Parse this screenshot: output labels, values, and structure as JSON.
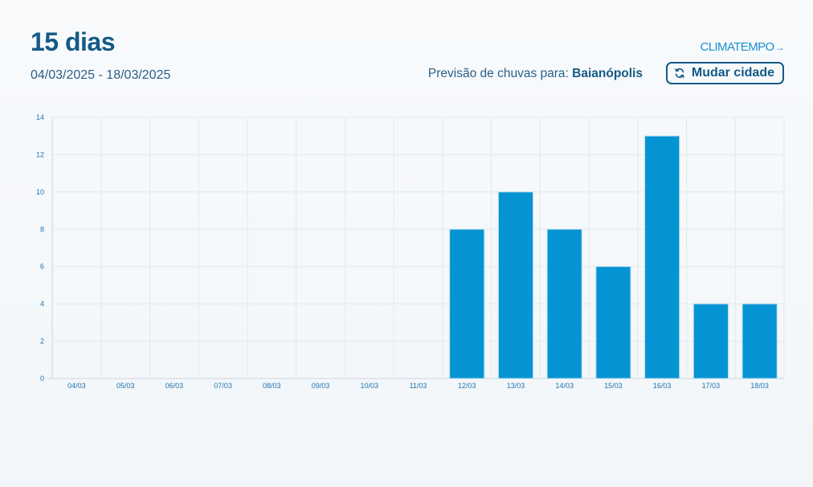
{
  "header": {
    "title": "15 dias",
    "date_range": "04/03/2025 - 18/03/2025",
    "brand": "CLIMATEMPO",
    "forecast_prefix": "Previsão de chuvas para:",
    "city": "Baianópolis",
    "change_city_label": "Mudar cidade",
    "change_city_icon": "refresh-icon"
  },
  "colors": {
    "accent": "#155a86",
    "bar": "#0594d3",
    "brand": "#1a8fd1"
  },
  "chart_data": {
    "type": "bar",
    "title": "",
    "xlabel": "",
    "ylabel": "",
    "categories": [
      "04/03",
      "05/03",
      "06/03",
      "07/03",
      "08/03",
      "09/03",
      "10/03",
      "11/03",
      "12/03",
      "13/03",
      "14/03",
      "15/03",
      "16/03",
      "17/03",
      "18/03"
    ],
    "values": [
      0,
      0,
      0,
      0,
      0,
      0,
      0,
      0,
      8,
      10,
      8,
      6,
      13,
      4,
      4
    ],
    "ylim": [
      0,
      14
    ],
    "yticks": [
      0,
      2,
      4,
      6,
      8,
      10,
      12,
      14
    ],
    "grid": true,
    "legend": "none"
  }
}
